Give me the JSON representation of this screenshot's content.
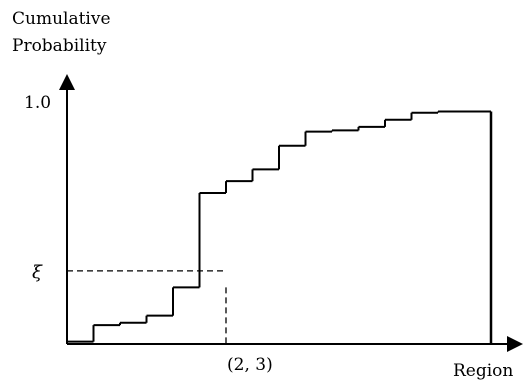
{
  "chart_data": {
    "type": "line",
    "step": true,
    "ylabel": [
      "Cumulative",
      "Probability"
    ],
    "xlabel": "Region",
    "ylim": [
      0,
      1.0
    ],
    "y_ticks": [
      {
        "value": 1.0,
        "label": "1.0"
      }
    ],
    "steps_x": [
      0,
      1,
      2,
      3,
      4,
      5,
      6,
      7,
      8,
      9,
      10,
      11,
      12,
      13,
      14,
      15,
      16
    ],
    "values": [
      0.01,
      0.08,
      0.09,
      0.12,
      0.24,
      0.64,
      0.69,
      0.74,
      0.84,
      0.9,
      0.905,
      0.92,
      0.95,
      0.98,
      0.985,
      0.985
    ],
    "inverse_lookup": {
      "xi_label": "ξ",
      "xi_value": 0.31,
      "region_label": "(2, 3)",
      "region_step_index": 6
    }
  }
}
